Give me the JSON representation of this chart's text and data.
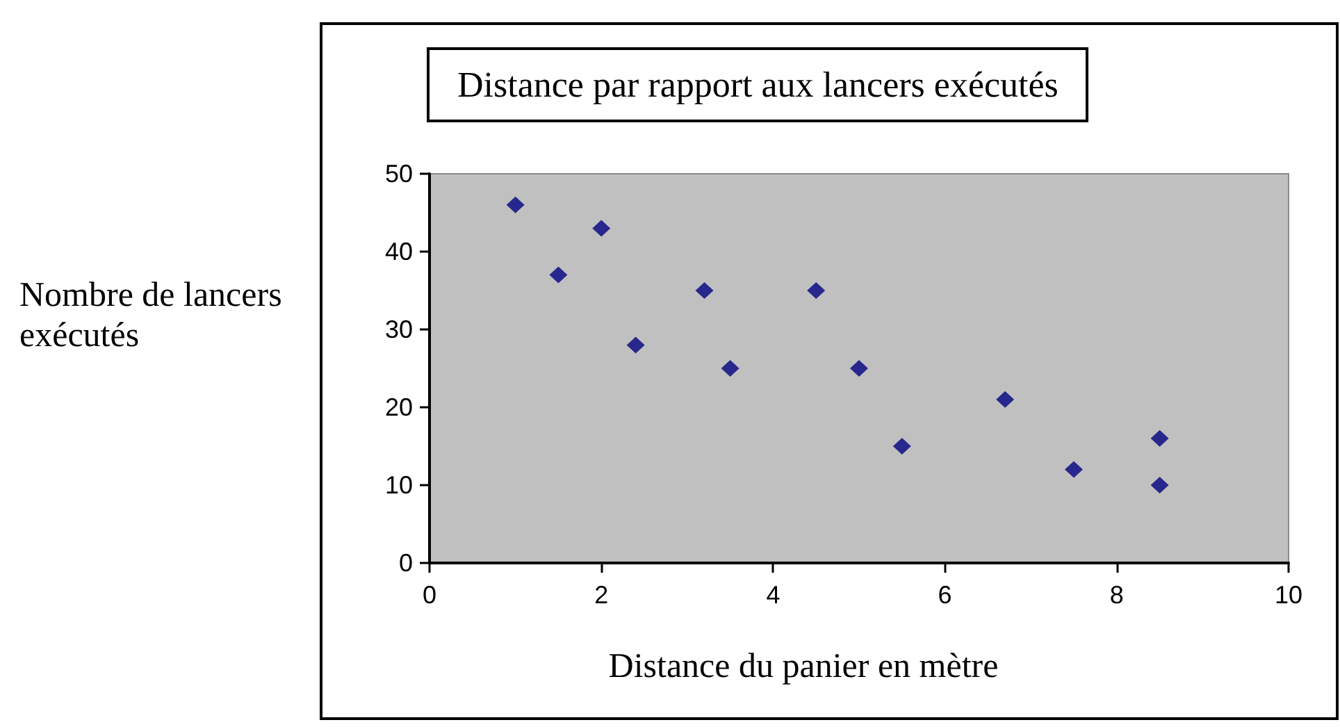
{
  "chart_data": {
    "type": "scatter",
    "title": "Distance par rapport aux lancers exécutés",
    "xlabel": "Distance du panier en mètre",
    "ylabel": "Nombre de lancers exécutés",
    "x": [
      1,
      1.5,
      2,
      2.4,
      3.2,
      3.5,
      4.5,
      5,
      5.5,
      6.7,
      7.5,
      8.5,
      8.5
    ],
    "series": [
      {
        "color": "#000080",
        "values": [
          46,
          37,
          43,
          28,
          35,
          25,
          35,
          25,
          15,
          21,
          12,
          16,
          10
        ]
      }
    ],
    "xlim": [
      0,
      10
    ],
    "xticks": [
      0,
      2,
      4,
      6,
      8,
      10
    ],
    "ylim": [
      0,
      50
    ],
    "yticks": [
      0,
      10,
      20,
      30,
      40,
      50
    ],
    "grid": false,
    "marker": "diamond"
  }
}
